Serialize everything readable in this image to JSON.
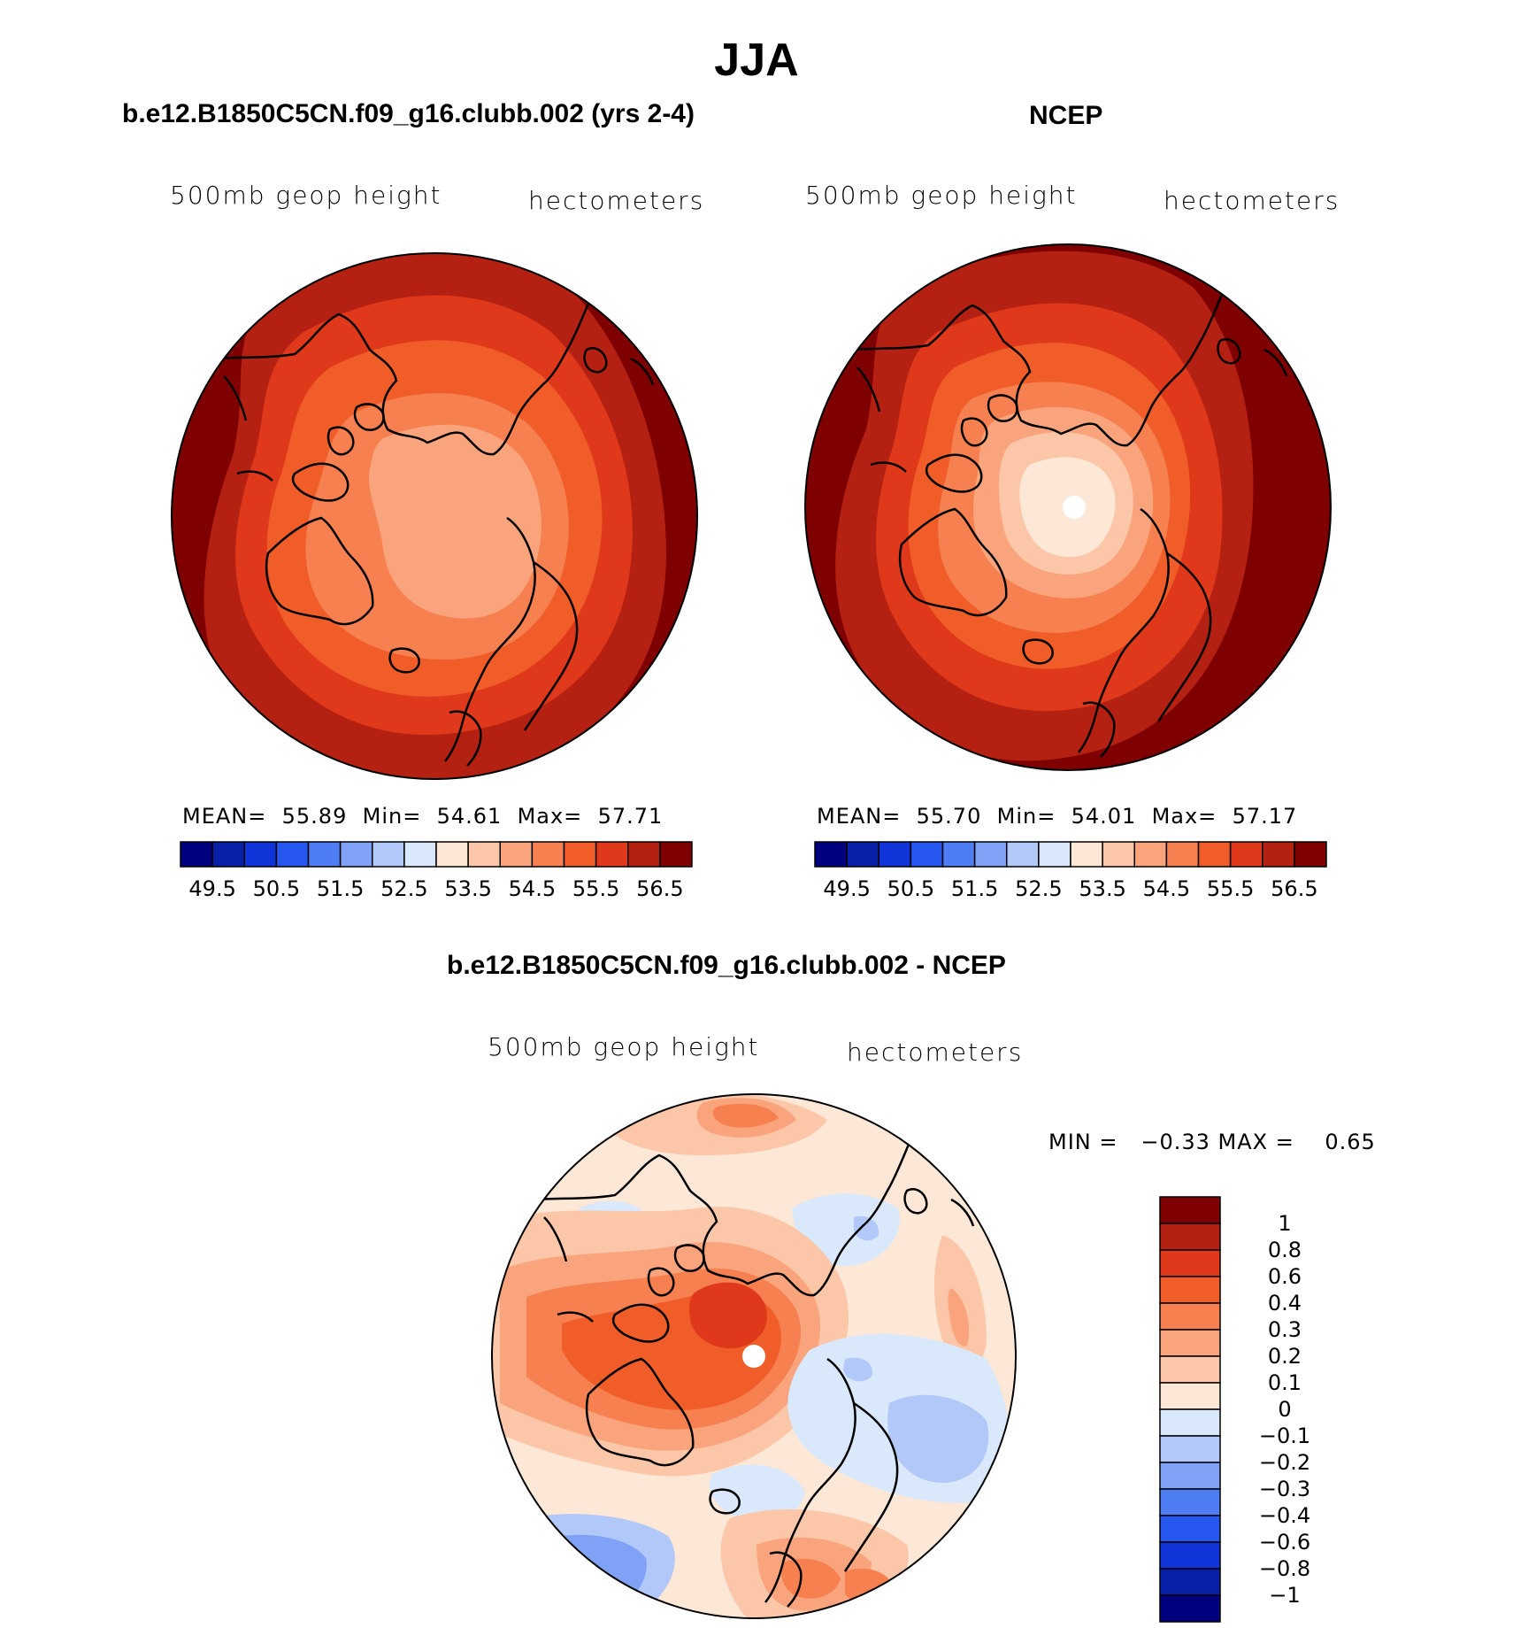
{
  "figure": {
    "season": "JJA"
  },
  "panels": [
    {
      "id": "model",
      "title": "b.e12.B1850C5CN.f09_g16.clubb.002 (yrs 2-4)",
      "left_label": "500mb geop height",
      "right_label": "hectometers",
      "stats": {
        "mean_label": "MEAN=",
        "mean": "55.89",
        "min_label": "Min=",
        "min": "54.61",
        "max_label": "Max=",
        "max": "57.71"
      }
    },
    {
      "id": "obs",
      "title": "NCEP",
      "left_label": "500mb geop height",
      "right_label": "hectometers",
      "stats": {
        "mean_label": "MEAN=",
        "mean": "55.70",
        "min_label": "Min=",
        "min": "54.01",
        "max_label": "Max=",
        "max": "57.17"
      }
    },
    {
      "id": "diff",
      "title": "b.e12.B1850C5CN.f09_g16.clubb.002 - NCEP",
      "left_label": "500mb geop height",
      "right_label": "hectometers",
      "stats": {
        "text": "MIN =   −0.33 MAX =    0.65"
      }
    }
  ],
  "colorbar_abs": {
    "colors": [
      "#00007f",
      "#0820a8",
      "#1034d8",
      "#2658f0",
      "#4f7ef4",
      "#7fa2f6",
      "#b1c8f8",
      "#d9e8fb",
      "#fde7d6",
      "#fbc7a8",
      "#f9a47c",
      "#f6804f",
      "#f05d28",
      "#e0381a",
      "#b42112",
      "#7f0000"
    ],
    "tick_labels": [
      "49.5",
      "50.5",
      "51.5",
      "52.5",
      "53.5",
      "54.5",
      "55.5",
      "56.5"
    ]
  },
  "colorbar_diff": {
    "colors": [
      "#7f0000",
      "#b42112",
      "#e0381a",
      "#f05d28",
      "#f6804f",
      "#f9a47c",
      "#fbc7a8",
      "#fde7d6",
      "#d9e8fb",
      "#b1c8f8",
      "#7fa2f6",
      "#4f7ef4",
      "#2658f0",
      "#1034d8",
      "#0820a8",
      "#00007f"
    ],
    "tick_labels": [
      "1",
      "0.8",
      "0.6",
      "0.4",
      "0.3",
      "0.2",
      "0.1",
      "0",
      "−0.1",
      "−0.2",
      "−0.3",
      "−0.4",
      "−0.6",
      "−0.8",
      "−1"
    ]
  }
}
